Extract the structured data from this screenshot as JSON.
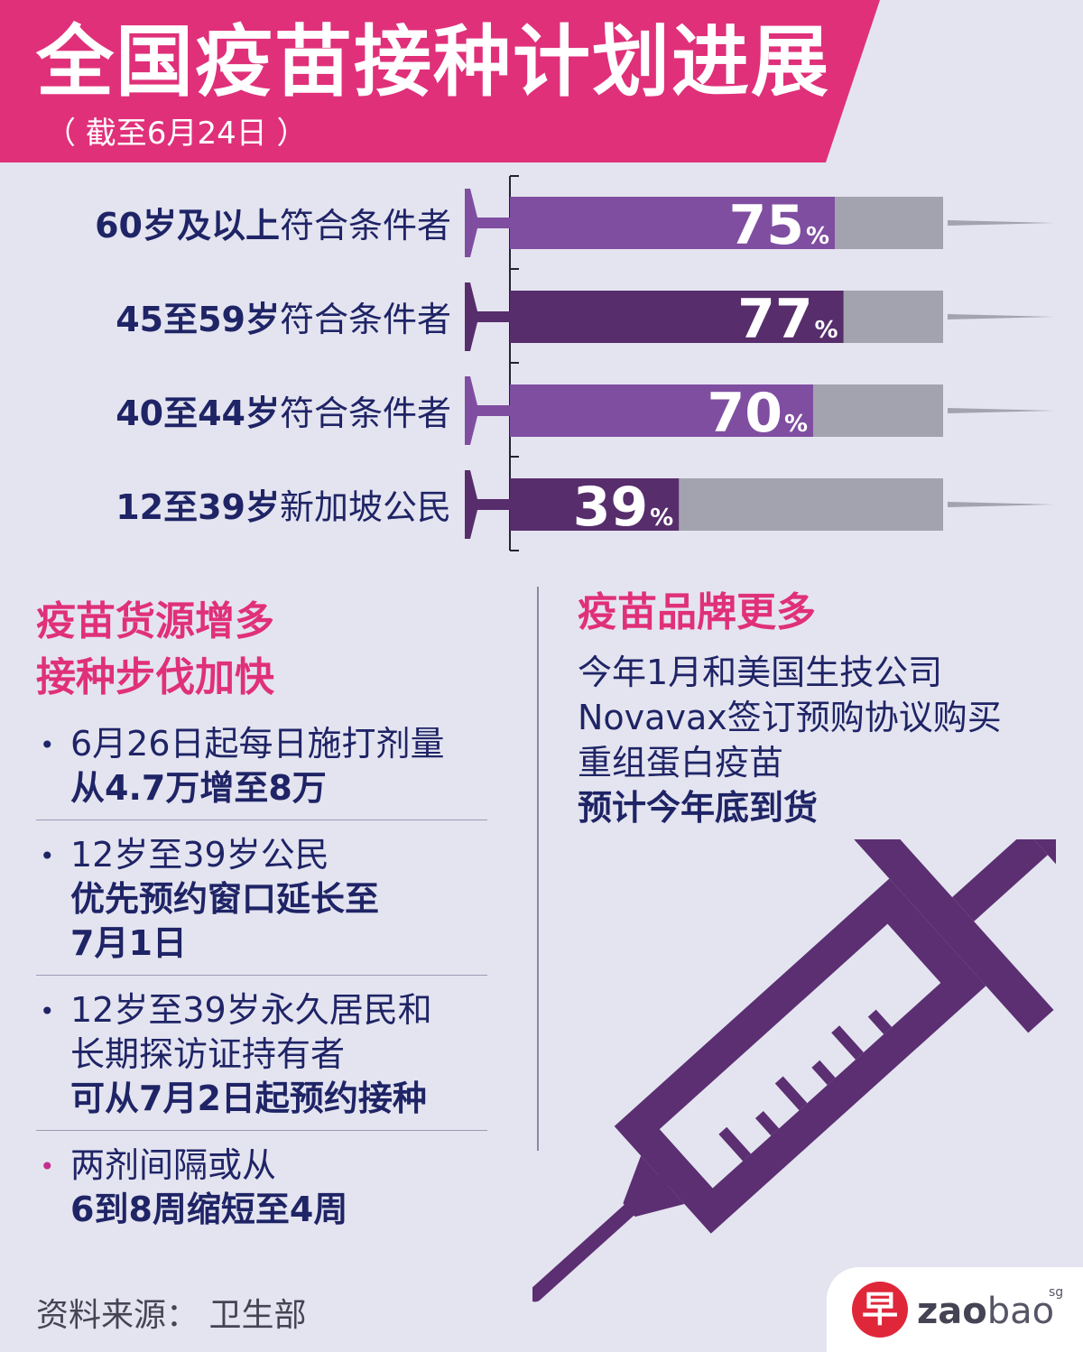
{
  "header": {
    "title": "全国疫苗接种计划进展",
    "subtitle": "（ 截至6月24日 ）"
  },
  "colors": {
    "header_bg": "#e0307a",
    "bar_light": "#7f4ea1",
    "bar_dark": "#572d6c",
    "bar_track": "#a3a3b0",
    "label_text": "#1f2466",
    "accent": "#e0307a",
    "syringe": "#5b2f72",
    "background": "#e4e4f0"
  },
  "chart_data": {
    "type": "bar",
    "orientation": "horizontal",
    "unit": "%",
    "xlim": [
      0,
      100
    ],
    "categories": [
      {
        "bold": "60岁及以上",
        "rest": "符合条件者"
      },
      {
        "bold": "45至59岁",
        "rest": "符合条件者"
      },
      {
        "bold": "40至44岁",
        "rest": "符合条件者"
      },
      {
        "bold": "12至39岁",
        "rest": "新加坡公民"
      }
    ],
    "values": [
      75,
      77,
      70,
      39
    ],
    "value_labels": [
      "75",
      "77",
      "70",
      "39"
    ],
    "bar_styles": [
      "light",
      "dark",
      "light",
      "dark"
    ]
  },
  "left_section": {
    "title_lines": [
      "疫苗货源增多",
      "接种步伐加快"
    ],
    "bullets": [
      {
        "normal": [
          "6月26日起每日施打剂量"
        ],
        "bold": [
          "从4.7万增至8万"
        ]
      },
      {
        "normal": [
          "12岁至39岁公民"
        ],
        "bold": [
          "优先预约窗口延长至",
          "7月1日"
        ]
      },
      {
        "normal": [
          "12岁至39岁永久居民和",
          "长期探访证持有者"
        ],
        "bold": [
          "可从7月2日起预约接种"
        ]
      },
      {
        "normal": [
          "两剂间隔或从"
        ],
        "bold": [
          "6到8周缩短至4周"
        ]
      }
    ]
  },
  "right_section": {
    "title": "疫苗品牌更多",
    "lines": [
      "今年1月和美国生技公司",
      "Novavax签订预购协议购买",
      "重组蛋白疫苗"
    ],
    "bold_line": "预计今年底到货"
  },
  "footer": {
    "source": "资料来源： 卫生部",
    "logo_char": "早",
    "logo_bold": "zao",
    "logo_light": "bao",
    "logo_sup": "sg"
  }
}
